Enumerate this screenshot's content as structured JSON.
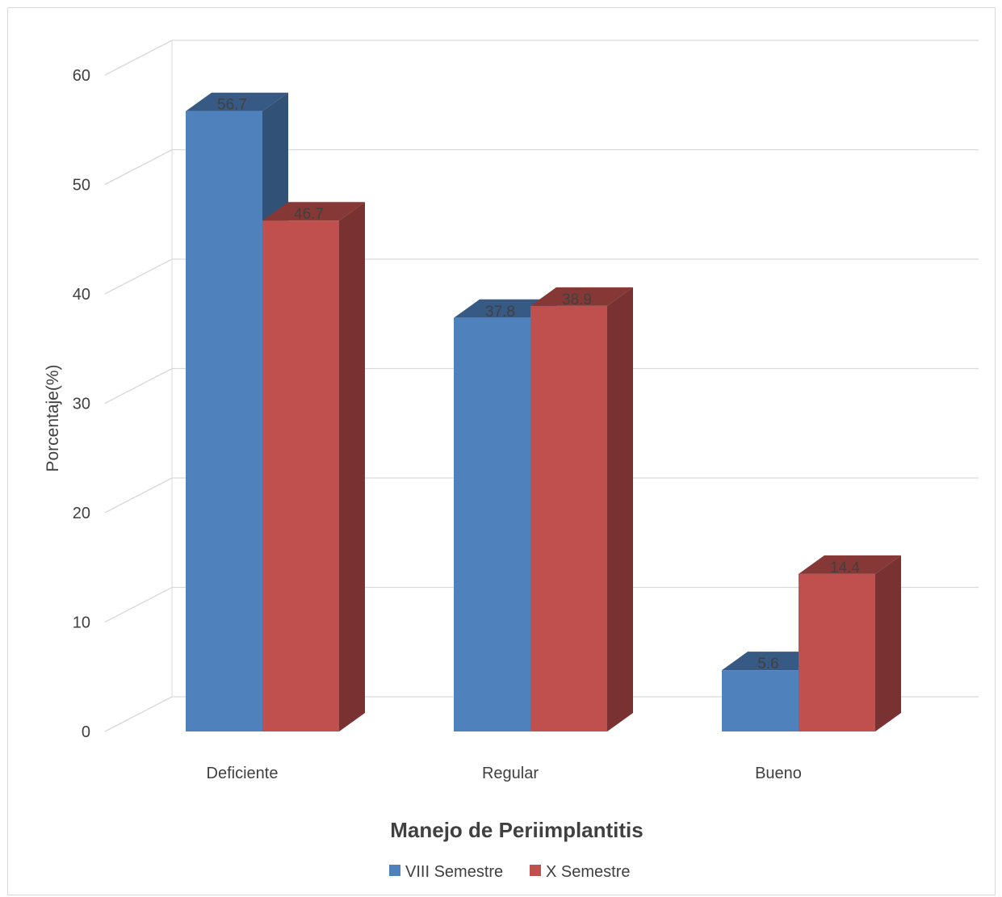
{
  "chart_data": {
    "type": "bar",
    "style": "3d-clustered-column",
    "categories": [
      "Deficiente",
      "Regular",
      "Bueno"
    ],
    "series": [
      {
        "name": "VIII Semestre",
        "values": [
          56.7,
          37.8,
          5.6
        ],
        "color": "#4f81bd"
      },
      {
        "name": "X Semestre",
        "values": [
          46.7,
          38.9,
          14.4
        ],
        "color": "#c0504d"
      }
    ],
    "ylabel": "Porcentaje(%)",
    "xlabel": "Manejo de Periimplantitis",
    "ylim": [
      0,
      60
    ],
    "yticks": [
      0,
      10,
      20,
      30,
      40,
      50,
      60
    ],
    "grid": true,
    "legend_position": "bottom",
    "data_labels": true
  }
}
